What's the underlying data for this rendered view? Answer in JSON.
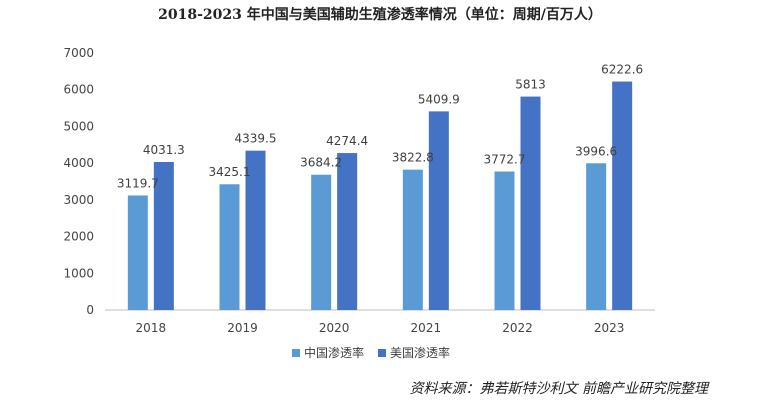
{
  "chart_data": {
    "type": "bar",
    "title": "2018-2023 年中国与美国辅助生殖渗透率情况（单位：周期/百万人）",
    "categories": [
      "2018",
      "2019",
      "2020",
      "2021",
      "2022",
      "2023"
    ],
    "series": [
      {
        "name": "中国渗透率",
        "values": [
          3119.7,
          3425.1,
          3684.2,
          3822.8,
          3772.7,
          3996.6
        ],
        "color": "#5b9bd5"
      },
      {
        "name": "美国渗透率",
        "values": [
          4031.3,
          4339.5,
          4274.4,
          5409.9,
          5813,
          6222.6
        ],
        "color": "#4472c4"
      }
    ],
    "ylim": [
      0,
      7000
    ],
    "yticks": [
      0,
      1000,
      2000,
      3000,
      4000,
      5000,
      6000,
      7000
    ],
    "xlabel": "",
    "ylabel": "",
    "grid": false,
    "legend_position": "bottom"
  },
  "source_note": "资料来源：弗若斯特沙利文  前瞻产业研究院整理"
}
